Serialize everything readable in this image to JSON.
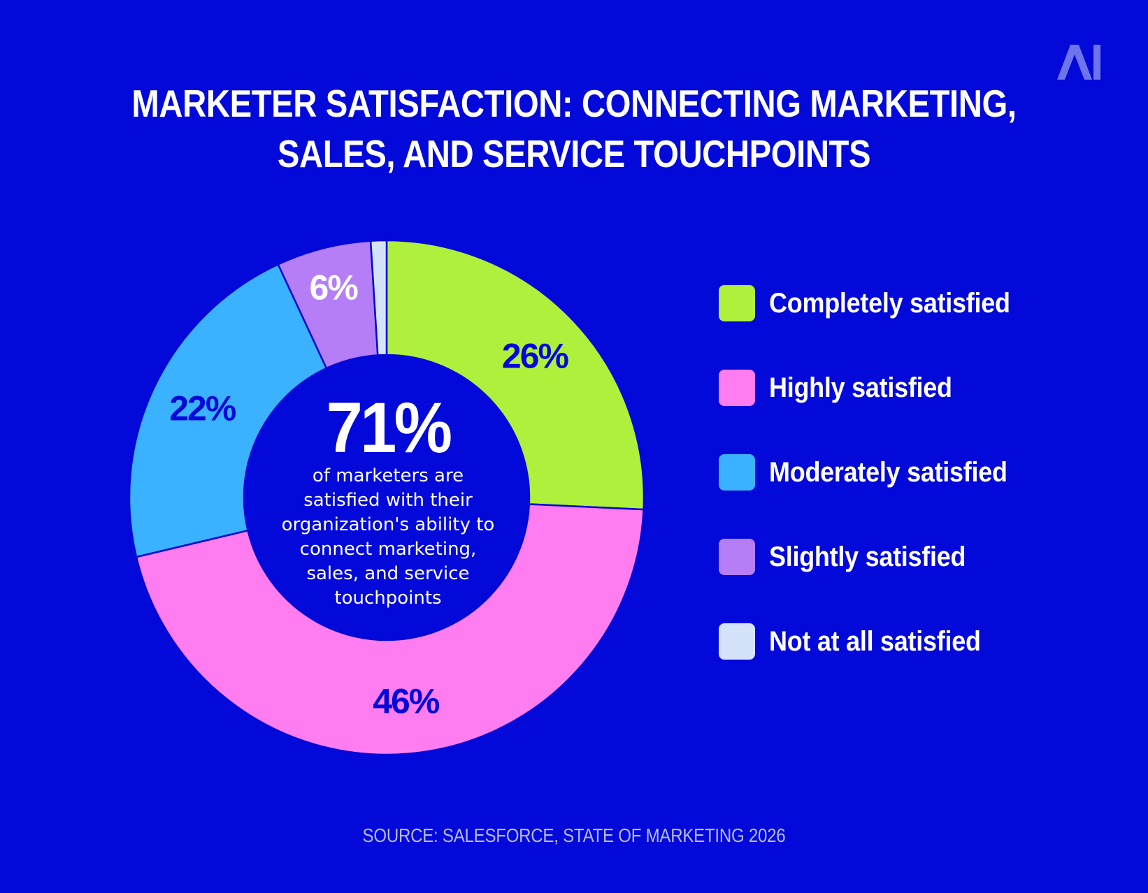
{
  "title": {
    "line1": "MARKETER SATISFACTION: CONNECTING MARKETING,",
    "line2": "SALES, AND SERVICE TOUCHPOINTS"
  },
  "logo": {
    "icon": "ai-logo-icon",
    "text": "AI"
  },
  "center": {
    "big_value": "71%",
    "description": "of marketers are satisfied with their organization's ability to connect marketing, sales, and service touchpoints"
  },
  "source": "SOURCE: SALESFORCE, STATE OF MARKETING 2026",
  "colors": {
    "background": "#0209D9",
    "label_dark": "#0209D9",
    "label_light": "#FFFFFF"
  },
  "chart_data": {
    "type": "pie",
    "title": "MARKETER SATISFACTION: CONNECTING MARKETING, SALES, AND SERVICE TOUCHPOINTS",
    "donut": true,
    "legend_position": "right",
    "slices": [
      {
        "name": "Completely satisfied",
        "value": 26,
        "label": "26%",
        "color": "#AEF03C",
        "label_color": "#0209D9"
      },
      {
        "name": "Highly satisfied",
        "value": 46,
        "label": "46%",
        "color": "#FF7DF0",
        "label_color": "#0209D9"
      },
      {
        "name": "Moderately satisfied",
        "value": 22,
        "label": "22%",
        "color": "#3BB2FF",
        "label_color": "#0209D9"
      },
      {
        "name": "Slightly satisfied",
        "value": 6,
        "label": "6%",
        "color": "#B57EF7",
        "label_color": "#FFFFFF"
      },
      {
        "name": "Not at all satisfied",
        "value": 1,
        "label": "",
        "color": "#D5E3FA",
        "label_color": "#0209D9"
      }
    ]
  }
}
